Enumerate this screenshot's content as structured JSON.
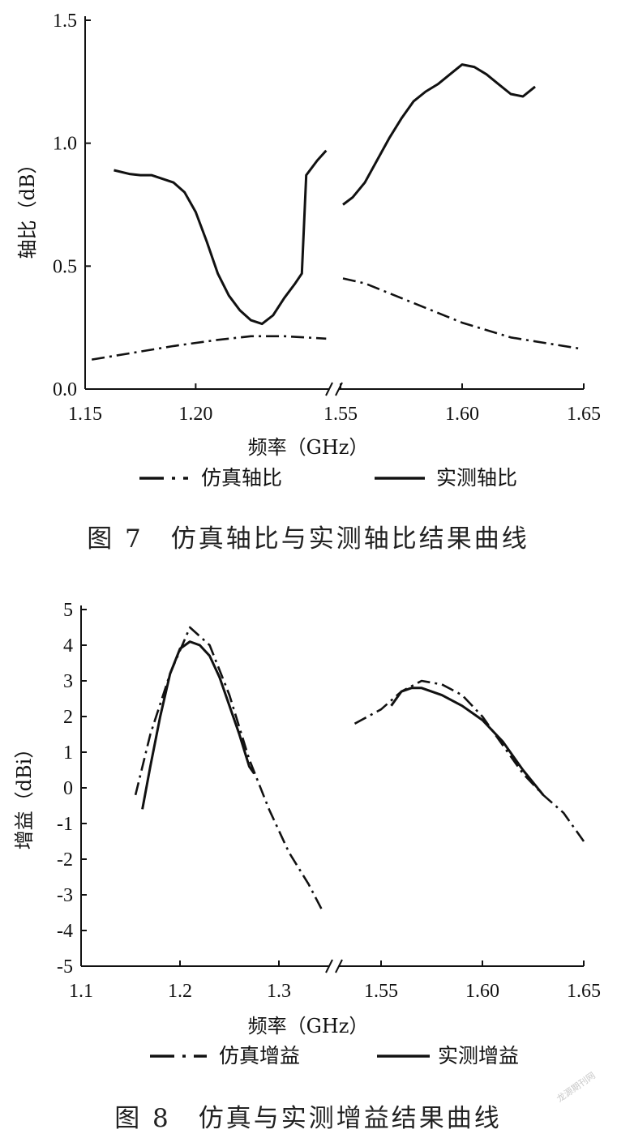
{
  "watermark": "龙源期刊网",
  "chart_data": [
    {
      "type": "line",
      "caption": "图 7　仿真轴比与实测轴比结果曲线",
      "xlabel": "频率（GHz）",
      "ylabel": "轴比（dB）",
      "broken_x_axis": true,
      "ylim": [
        0,
        1.5
      ],
      "yticks": [
        "0.0",
        "0.5",
        "1.0",
        "1.5"
      ],
      "xticks_left": [
        "1.15",
        "1.20"
      ],
      "xticks_right": [
        "1.55",
        "1.60",
        "1.65"
      ],
      "xlim_left": [
        1.15,
        1.26
      ],
      "xlim_right": [
        1.55,
        1.65
      ],
      "legend_position": "bottom",
      "series": [
        {
          "name": "仿真轴比",
          "style": "dash-dot",
          "left": {
            "x": [
              1.153,
              1.17,
              1.19,
              1.21,
              1.225,
              1.24,
              1.259
            ],
            "y": [
              0.12,
              0.145,
              0.175,
              0.2,
              0.215,
              0.215,
              0.205
            ]
          },
          "right": {
            "x": [
              1.551,
              1.56,
              1.58,
              1.6,
              1.62,
              1.648
            ],
            "y": [
              0.45,
              0.43,
              0.35,
              0.27,
              0.21,
              0.165
            ]
          }
        },
        {
          "name": "实测轴比",
          "style": "solid",
          "left": {
            "x": [
              1.163,
              1.17,
              1.175,
              1.18,
              1.19,
              1.195,
              1.2,
              1.205,
              1.21,
              1.215,
              1.22,
              1.225,
              1.23,
              1.235,
              1.24,
              1.245,
              1.248,
              1.25,
              1.255,
              1.259
            ],
            "y": [
              0.89,
              0.875,
              0.87,
              0.87,
              0.84,
              0.8,
              0.72,
              0.6,
              0.47,
              0.38,
              0.32,
              0.28,
              0.265,
              0.3,
              0.37,
              0.43,
              0.47,
              0.87,
              0.93,
              0.97
            ]
          },
          "right": {
            "x": [
              1.551,
              1.555,
              1.56,
              1.565,
              1.57,
              1.575,
              1.58,
              1.585,
              1.59,
              1.595,
              1.6,
              1.605,
              1.61,
              1.615,
              1.62,
              1.625,
              1.63
            ],
            "y": [
              0.75,
              0.78,
              0.84,
              0.93,
              1.02,
              1.1,
              1.17,
              1.21,
              1.24,
              1.28,
              1.32,
              1.31,
              1.28,
              1.24,
              1.2,
              1.19,
              1.23
            ]
          }
        }
      ]
    },
    {
      "type": "line",
      "caption": "图 8　仿真与实测增益结果曲线",
      "xlabel": "频率（GHz）",
      "ylabel": "增益（dBi）",
      "broken_x_axis": true,
      "ylim": [
        -5,
        5
      ],
      "yticks": [
        "-5",
        "-4",
        "-3",
        "-2",
        "-1",
        "0",
        "1",
        "2",
        "3",
        "4",
        "5"
      ],
      "xticks_left": [
        "1.1",
        "1.2",
        "1.3"
      ],
      "xticks_right": [
        "1.55",
        "1.60",
        "1.65"
      ],
      "xlim_left": [
        1.1,
        1.35
      ],
      "xlim_right": [
        1.53,
        1.65
      ],
      "legend_position": "bottom",
      "series": [
        {
          "name": "仿真增益",
          "style": "dash-dot",
          "left": {
            "x": [
              1.155,
              1.17,
              1.19,
              1.21,
              1.23,
              1.25,
              1.27,
              1.29,
              1.31,
              1.33,
              1.345
            ],
            "y": [
              -0.2,
              1.5,
              3.2,
              4.5,
              4.0,
              2.6,
              0.8,
              -0.6,
              -1.8,
              -2.7,
              -3.5
            ]
          },
          "right": {
            "x": [
              1.537,
              1.55,
              1.56,
              1.57,
              1.58,
              1.59,
              1.6,
              1.61,
              1.62,
              1.63,
              1.64,
              1.65
            ],
            "y": [
              1.8,
              2.2,
              2.7,
              3.0,
              2.9,
              2.6,
              2.0,
              1.2,
              0.4,
              -0.2,
              -0.7,
              -1.5
            ]
          }
        },
        {
          "name": "实测增益",
          "style": "solid",
          "left": {
            "x": [
              1.162,
              1.17,
              1.18,
              1.19,
              1.2,
              1.21,
              1.22,
              1.23,
              1.24,
              1.25,
              1.26,
              1.27,
              1.275
            ],
            "y": [
              -0.6,
              0.6,
              2.0,
              3.2,
              3.9,
              4.1,
              4.0,
              3.7,
              3.1,
              2.3,
              1.5,
              0.6,
              0.4
            ]
          },
          "right": {
            "x": [
              1.555,
              1.56,
              1.565,
              1.57,
              1.575,
              1.58,
              1.59,
              1.6,
              1.61,
              1.62,
              1.63
            ],
            "y": [
              2.3,
              2.7,
              2.8,
              2.8,
              2.7,
              2.6,
              2.3,
              1.9,
              1.3,
              0.5,
              -0.2
            ]
          }
        }
      ]
    }
  ]
}
